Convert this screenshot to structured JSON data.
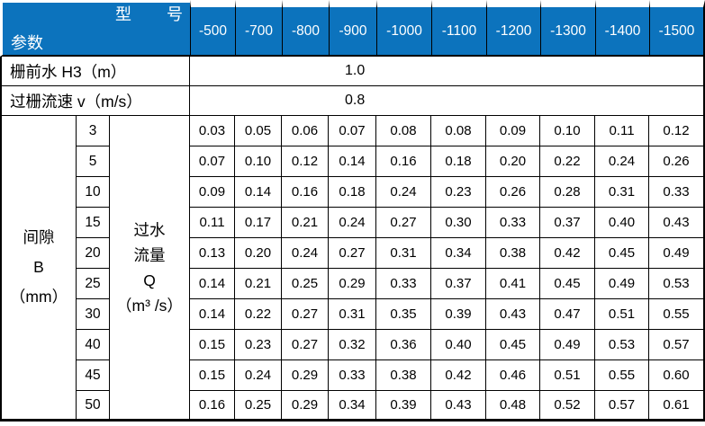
{
  "header": {
    "model_axis_label": "型 号",
    "param_axis_label": "参数",
    "models": [
      "-500",
      "-700",
      "-800",
      "-900",
      "-1000",
      "-1100",
      "-1200",
      "-1300",
      "-1400",
      "-1500"
    ]
  },
  "param_rows": [
    {
      "label": "栅前水 H3（m）",
      "value": "1.0"
    },
    {
      "label": "过栅流速 v（m/s）",
      "value": "0.8"
    }
  ],
  "matrix": {
    "row_header": {
      "lines": [
        "间隙",
        "B",
        "（mm）"
      ]
    },
    "col_header": {
      "lines": [
        "过水",
        "流量",
        "Q",
        "（m³ /s）"
      ]
    },
    "rows": [
      {
        "gap": "3",
        "values": [
          "0.03",
          "0.05",
          "0.06",
          "0.07",
          "0.08",
          "0.08",
          "0.09",
          "0.10",
          "0.11",
          "0.12"
        ]
      },
      {
        "gap": "5",
        "values": [
          "0.07",
          "0.10",
          "0.12",
          "0.14",
          "0.16",
          "0.18",
          "0.20",
          "0.22",
          "0.24",
          "0.26"
        ]
      },
      {
        "gap": "10",
        "values": [
          "0.09",
          "0.14",
          "0.16",
          "0.18",
          "0.24",
          "0.23",
          "0.26",
          "0.28",
          "0.31",
          "0.33"
        ]
      },
      {
        "gap": "15",
        "values": [
          "0.11",
          "0.17",
          "0.21",
          "0.24",
          "0.27",
          "0.30",
          "0.33",
          "0.37",
          "0.40",
          "0.43"
        ]
      },
      {
        "gap": "20",
        "values": [
          "0.13",
          "0.20",
          "0.24",
          "0.27",
          "0.31",
          "0.34",
          "0.38",
          "0.42",
          "0.45",
          "0.49"
        ]
      },
      {
        "gap": "25",
        "values": [
          "0.14",
          "0.21",
          "0.25",
          "0.29",
          "0.33",
          "0.37",
          "0.41",
          "0.45",
          "0.49",
          "0.53"
        ]
      },
      {
        "gap": "30",
        "values": [
          "0.14",
          "0.22",
          "0.27",
          "0.31",
          "0.35",
          "0.39",
          "0.43",
          "0.47",
          "0.51",
          "0.55"
        ]
      },
      {
        "gap": "40",
        "values": [
          "0.15",
          "0.23",
          "0.27",
          "0.32",
          "0.36",
          "0.40",
          "0.45",
          "0.49",
          "0.53",
          "0.57"
        ]
      },
      {
        "gap": "45",
        "values": [
          "0.15",
          "0.24",
          "0.29",
          "0.33",
          "0.38",
          "0.42",
          "0.46",
          "0.51",
          "0.55",
          "0.60"
        ]
      },
      {
        "gap": "50",
        "values": [
          "0.16",
          "0.25",
          "0.29",
          "0.34",
          "0.39",
          "0.43",
          "0.48",
          "0.52",
          "0.57",
          "0.61"
        ]
      }
    ]
  },
  "colors": {
    "header_bg": "#0c73bd",
    "header_text": "#ffffff",
    "grid_line": "#000000",
    "body_bg": "#ffffff",
    "body_text": "#000000"
  }
}
